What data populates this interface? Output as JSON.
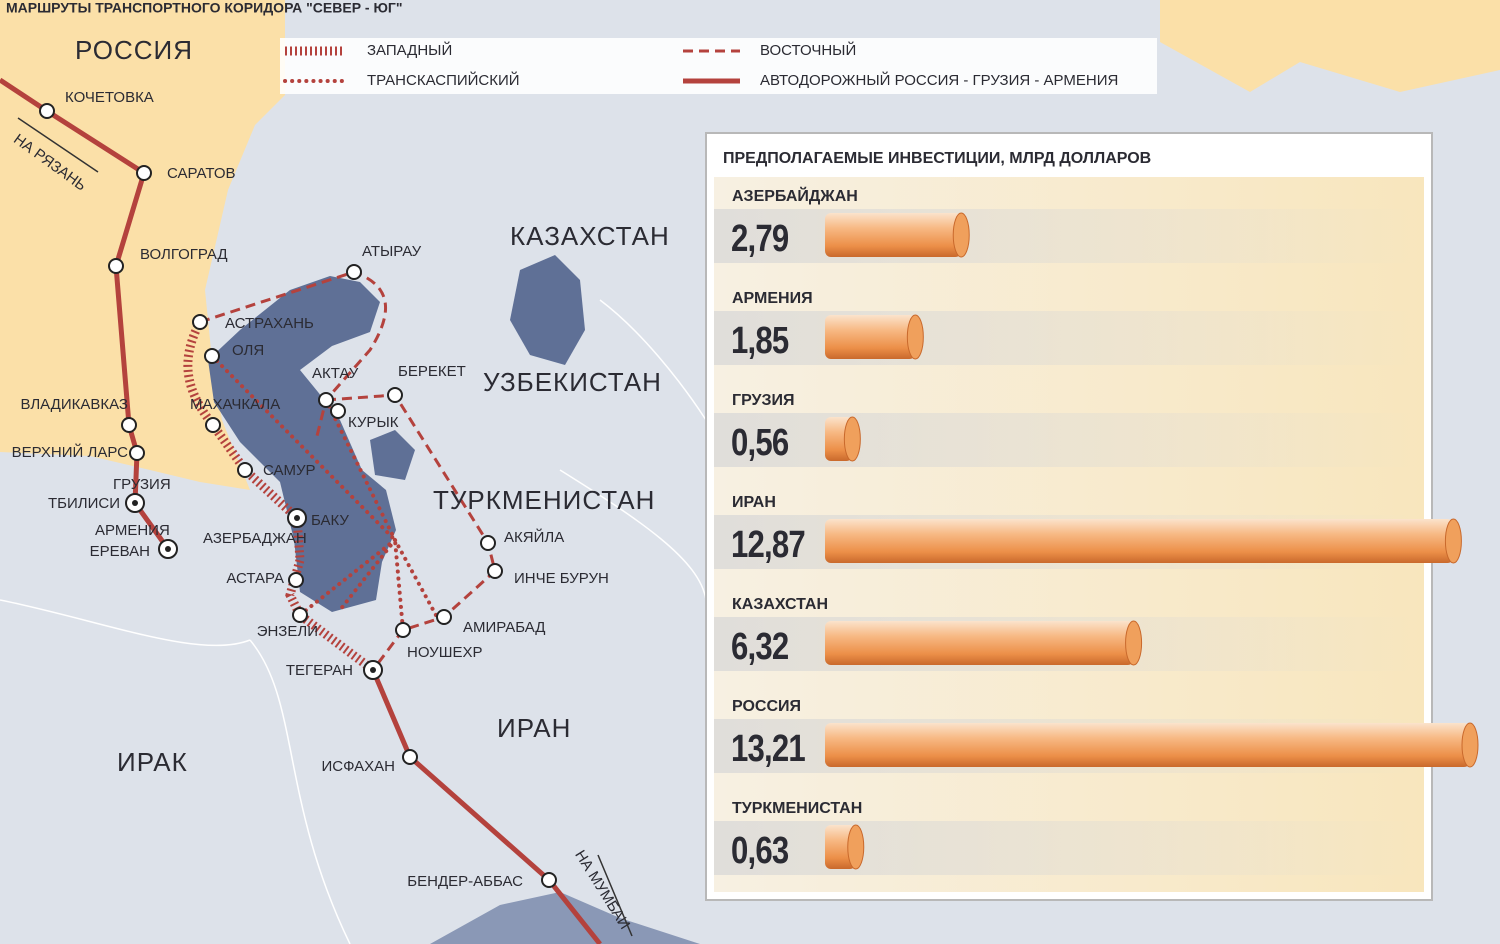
{
  "header": {
    "title": "МАРШРУТЫ ТРАНСПОРТНОГО КОРИДОРА \"СЕВЕР - ЮГ\""
  },
  "legend": {
    "items": [
      "ЗАПАДНЫЙ",
      "ВОСТОЧНЫЙ",
      "ТРАНСКАСПИЙСКИЙ",
      "АВТОДОРОЖНЫЙ РОССИЯ - ГРУЗИЯ - АРМЕНИЯ"
    ]
  },
  "map": {
    "countries": [
      "РОССИЯ",
      "КАЗАХСТАН",
      "УЗБЕКИСТАН",
      "ТУРКМЕНИСТАН",
      "ИРАН",
      "ИРАК",
      "ГРУЗИЯ",
      "АРМЕНИЯ",
      "АЗЕРБАДЖАН"
    ],
    "cities": [
      "КОЧЕТОВКА",
      "САРАТОВ",
      "ВОЛГОГРАД",
      "АСТРАХАНЬ",
      "ОЛЯ",
      "АТЫРАУ",
      "АКТАУ",
      "БЕРЕКЕТ",
      "КУРЫК",
      "МАХАЧКАЛА",
      "ВЛАДИКАВКАЗ",
      "ВЕРХНИЙ ЛАРС",
      "ТБИЛИСИ",
      "ЕРЕВАН",
      "САМУР",
      "БАКУ",
      "АСТАРА",
      "ЭНЗЕЛИ",
      "НОУШЕХР",
      "АМИРАБАД",
      "АКЯЙЛА",
      "ИНЧЕ БУРУН",
      "ТЕГЕРАН",
      "ИСФАХАН",
      "БЕНДЕР-АББАС"
    ],
    "directions": [
      "НА РЯЗАНЬ",
      "НА МУМБАИ"
    ]
  },
  "chart_data": {
    "type": "bar",
    "orientation": "horizontal",
    "title": "ПРЕДПОЛАГАЕМЫЕ ИНВЕСТИЦИИ, МЛРД ДОЛЛАРОВ",
    "categories": [
      "АЗЕРБАЙДЖАН",
      "АРМЕНИЯ",
      "ГРУЗИЯ",
      "ИРАН",
      "КАЗАХСТАН",
      "РОССИЯ",
      "ТУРКМЕНИСТАН"
    ],
    "values": [
      2.79,
      1.85,
      0.56,
      12.87,
      6.32,
      13.21,
      0.63
    ],
    "value_labels": [
      "2,79",
      "1,85",
      "0,56",
      "12,87",
      "6,32",
      "13,21",
      "0,63"
    ],
    "color": "#f0a05c"
  }
}
